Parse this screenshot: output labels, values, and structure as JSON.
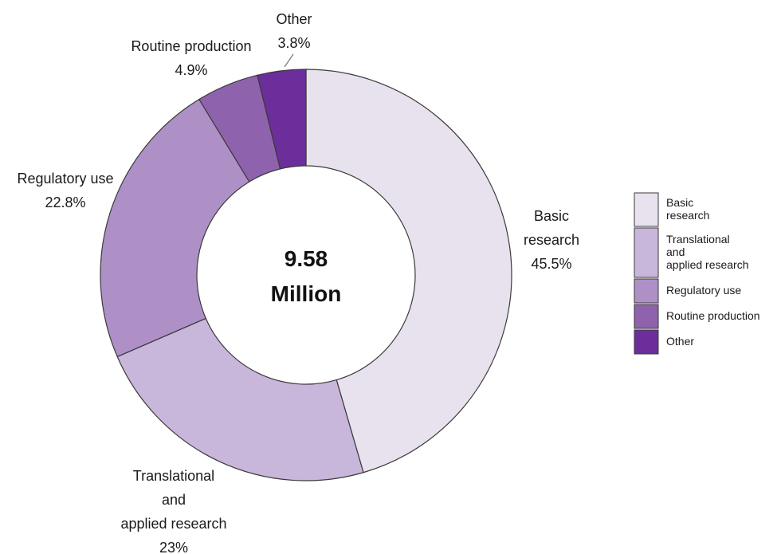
{
  "chart_data": {
    "type": "pie",
    "donut": true,
    "center_label": [
      "9.58",
      "Million"
    ],
    "categories": [
      "Basic research",
      "Translational and applied research",
      "Regulatory use",
      "Routine production",
      "Other"
    ],
    "values": [
      45.5,
      23,
      22.8,
      4.9,
      3.8
    ],
    "value_labels": [
      "45.5%",
      "23%",
      "22.8%",
      "4.9%",
      "3.8%"
    ],
    "slice_labels": [
      [
        "Basic",
        "research"
      ],
      [
        "Translational",
        "and",
        "applied research"
      ],
      [
        "Regulatory use"
      ],
      [
        "Routine production"
      ],
      [
        "Other"
      ]
    ],
    "legend_labels": [
      [
        "Basic",
        "research"
      ],
      [
        "Translational",
        "and",
        "applied research"
      ],
      [
        "Regulatory use"
      ],
      [
        "Routine production"
      ],
      [
        "Other"
      ]
    ],
    "colors": [
      "#e8e2ee",
      "#c9b6db",
      "#ae90c7",
      "#8f62ad",
      "#6b2e9a"
    ],
    "legend_position": "right"
  }
}
